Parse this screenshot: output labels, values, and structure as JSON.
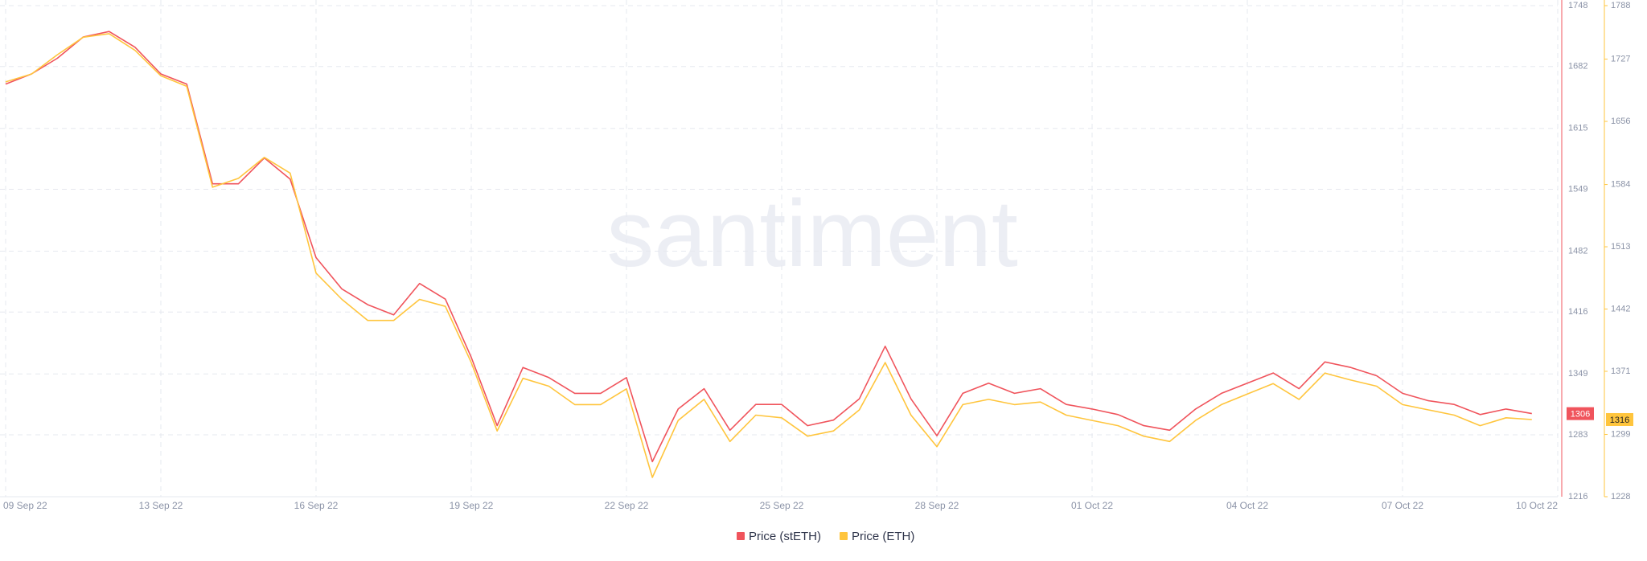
{
  "chart_data": {
    "type": "line",
    "watermark": "santiment",
    "categories": [
      "09 Sep 22",
      null,
      null,
      null,
      null,
      null,
      "13 Sep 22",
      null,
      null,
      null,
      null,
      null,
      "16 Sep 22",
      null,
      null,
      null,
      null,
      null,
      "19 Sep 22",
      null,
      null,
      null,
      null,
      null,
      "22 Sep 22",
      null,
      null,
      null,
      null,
      null,
      "25 Sep 22",
      null,
      null,
      null,
      null,
      null,
      "28 Sep 22",
      null,
      null,
      null,
      null,
      null,
      "01 Oct 22",
      null,
      null,
      null,
      null,
      null,
      "04 Oct 22",
      null,
      null,
      null,
      null,
      null,
      "07 Oct 22",
      null,
      null,
      null,
      null,
      null,
      "10 Oct 22"
    ],
    "series": [
      {
        "name": "Price (stETH)",
        "color": "#f0545c",
        "axis": "y",
        "values": [
          1663,
          1674,
          1691,
          1714,
          1720,
          1703,
          1674,
          1663,
          1555,
          1555,
          1583,
          1560,
          1475,
          1441,
          1424,
          1413,
          1447,
          1430,
          1367,
          1293,
          1356,
          1345,
          1328,
          1328,
          1345,
          1254,
          1311,
          1333,
          1288,
          1316,
          1316,
          1293,
          1299,
          1322,
          1379,
          1322,
          1282,
          1328,
          1339,
          1328,
          1333,
          1316,
          1311,
          1305,
          1293,
          1288,
          1311,
          1328,
          1339,
          1350,
          1333,
          1362,
          1356,
          1347,
          1328,
          1320,
          1316,
          1305,
          1311,
          1306,
          null
        ]
      },
      {
        "name": "Price (ETH)",
        "color": "#ffc53d",
        "axis": "y2",
        "values": [
          1701,
          1710,
          1732,
          1752,
          1756,
          1737,
          1708,
          1696,
          1581,
          1591,
          1615,
          1597,
          1483,
          1453,
          1429,
          1429,
          1453,
          1445,
          1381,
          1303,
          1363,
          1354,
          1333,
          1333,
          1351,
          1250,
          1315,
          1339,
          1291,
          1321,
          1318,
          1297,
          1303,
          1327,
          1381,
          1321,
          1285,
          1333,
          1339,
          1333,
          1336,
          1321,
          1315,
          1309,
          1297,
          1291,
          1315,
          1333,
          1345,
          1357,
          1339,
          1369,
          1361,
          1354,
          1333,
          1327,
          1321,
          1309,
          1318,
          1316,
          null
        ]
      }
    ],
    "ylim": [
      1216,
      1748
    ],
    "yticks": [
      1216,
      1283,
      1349,
      1416,
      1482,
      1549,
      1615,
      1682,
      1748
    ],
    "y2lim": [
      1228,
      1788
    ],
    "y2ticks": [
      1228,
      1299,
      1371,
      1442,
      1513,
      1584,
      1656,
      1727,
      1788
    ],
    "grid": true,
    "legend": "bottom"
  }
}
